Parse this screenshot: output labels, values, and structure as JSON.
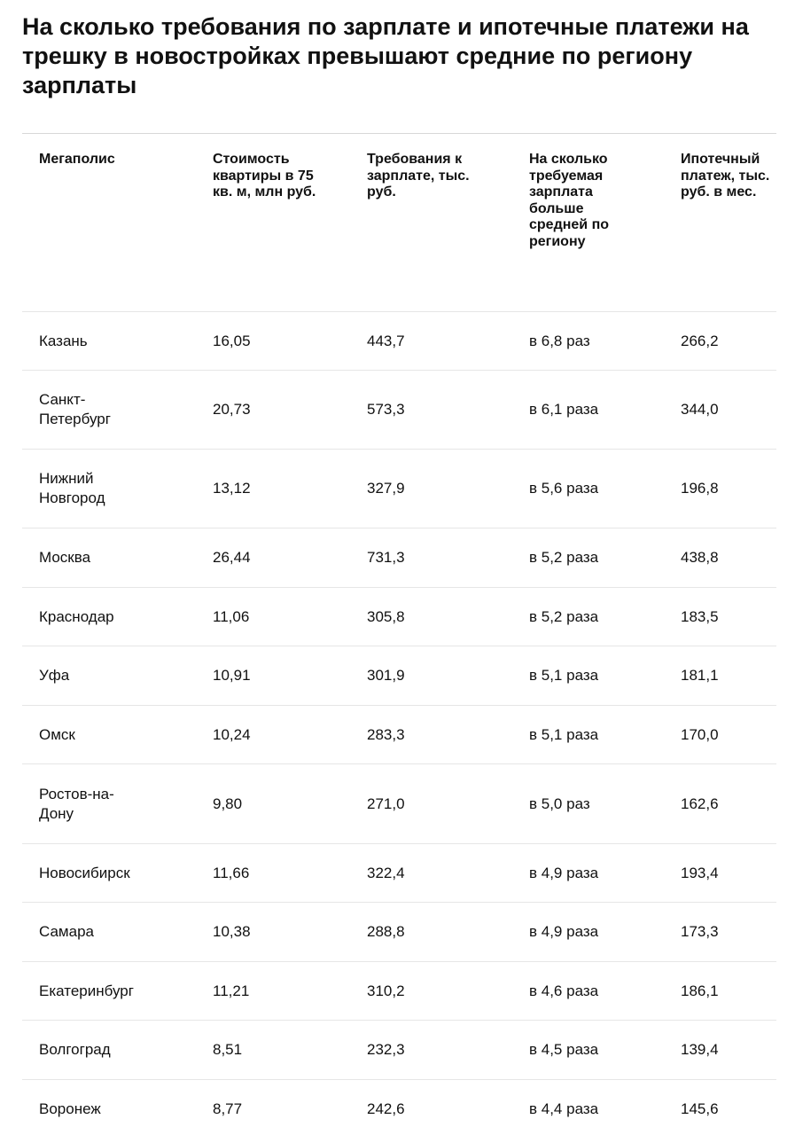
{
  "title": "На сколько требования по зарплате и ипотечные платежи на трешку в новостройках превышают средние по региону зарплаты",
  "table": {
    "header": [
      "Мегаполис",
      "Стоимость квартиры в 75 кв. м, млн руб.",
      "Требования к зарплате, тыс. руб.",
      "На сколько требуемая зарплата больше средней по региону",
      "Ипотечный платеж, тыс. руб. в мес."
    ],
    "rows": [
      [
        "Казань",
        "16,05",
        "443,7",
        "в 6,8 раз",
        "266,2"
      ],
      [
        "Санкт-Петербург",
        "20,73",
        "573,3",
        "в 6,1 раза",
        "344,0"
      ],
      [
        "Нижний Новгород",
        "13,12",
        "327,9",
        "в 5,6 раза",
        "196,8"
      ],
      [
        "Москва",
        "26,44",
        "731,3",
        "в 5,2 раза",
        "438,8"
      ],
      [
        "Краснодар",
        "11,06",
        "305,8",
        "в 5,2 раза",
        "183,5"
      ],
      [
        "Уфа",
        "10,91",
        "301,9",
        "в 5,1 раза",
        "181,1"
      ],
      [
        "Омск",
        "10,24",
        "283,3",
        "в 5,1 раза",
        "170,0"
      ],
      [
        "Ростов-на-Дону",
        "9,80",
        "271,0",
        "в 5,0 раз",
        "162,6"
      ],
      [
        "Новосибирск",
        "11,66",
        "322,4",
        "в 4,9 раза",
        "193,4"
      ],
      [
        "Самара",
        "10,38",
        "288,8",
        "в 4,9 раза",
        "173,3"
      ],
      [
        "Екатеринбург",
        "11,21",
        "310,2",
        "в 4,6 раза",
        "186,1"
      ],
      [
        "Волгоград",
        "8,51",
        "232,3",
        "в 4,5 раза",
        "139,4"
      ],
      [
        "Воронеж",
        "8,77",
        "242,6",
        "в 4,4 раза",
        "145,6"
      ]
    ]
  }
}
